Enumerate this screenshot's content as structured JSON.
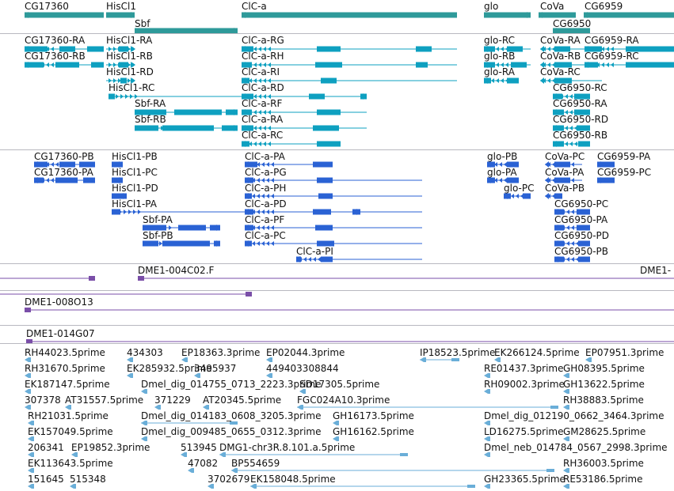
{
  "colors": {
    "gene": "#2e9a9a",
    "transcript": "#0ea0c0",
    "protein": "#2a62d4",
    "clone": "#7a4ea8",
    "est": "#6aaed8",
    "separator": "#b8b8c0"
  },
  "tracks": [
    {
      "name": "genes",
      "features": [
        {
          "label": "CG17360",
          "strand": "-"
        },
        {
          "label": "HisCl1",
          "strand": "+"
        },
        {
          "label": "Sbf",
          "strand": "+"
        },
        {
          "label": "ClC-a",
          "strand": "-"
        },
        {
          "label": "glo",
          "strand": "+"
        },
        {
          "label": "CoVa",
          "strand": "-"
        },
        {
          "label": "CG6950",
          "strand": "-"
        },
        {
          "label": "CG6959",
          "strand": "-"
        }
      ]
    },
    {
      "name": "transcripts",
      "features": [
        {
          "label": "CG17360-RA"
        },
        {
          "label": "CG17360-RB"
        },
        {
          "label": "HisCl1-RA"
        },
        {
          "label": "HisCl1-RB"
        },
        {
          "label": "HisCl1-RD"
        },
        {
          "label": "HisCl1-RC"
        },
        {
          "label": "Sbf-RA"
        },
        {
          "label": "Sbf-RB"
        },
        {
          "label": "ClC-a-RG"
        },
        {
          "label": "ClC-a-RH"
        },
        {
          "label": "ClC-a-RI"
        },
        {
          "label": "ClC-a-RD"
        },
        {
          "label": "ClC-a-RF"
        },
        {
          "label": "ClC-a-RA"
        },
        {
          "label": "ClC-a-RC"
        },
        {
          "label": "glo-RC"
        },
        {
          "label": "glo-RB"
        },
        {
          "label": "glo-RA"
        },
        {
          "label": "CoVa-RA"
        },
        {
          "label": "CoVa-RB"
        },
        {
          "label": "CoVa-RC"
        },
        {
          "label": "CG6959-RA"
        },
        {
          "label": "CG6959-RC"
        },
        {
          "label": "CG6950-RC"
        },
        {
          "label": "CG6950-RA"
        },
        {
          "label": "CG6950-RD"
        },
        {
          "label": "CG6950-RB"
        }
      ]
    },
    {
      "name": "proteins",
      "features": [
        {
          "label": "CG17360-PB"
        },
        {
          "label": "CG17360-PA"
        },
        {
          "label": "HisCl1-PB"
        },
        {
          "label": "HisCl1-PC"
        },
        {
          "label": "HisCl1-PD"
        },
        {
          "label": "HisCl1-PA"
        },
        {
          "label": "Sbf-PA"
        },
        {
          "label": "Sbf-PB"
        },
        {
          "label": "ClC-a-PA"
        },
        {
          "label": "ClC-a-PG"
        },
        {
          "label": "ClC-a-PH"
        },
        {
          "label": "ClC-a-PD"
        },
        {
          "label": "ClC-a-PF"
        },
        {
          "label": "ClC-a-PC"
        },
        {
          "label": "ClC-a-PI"
        },
        {
          "label": "glo-PB"
        },
        {
          "label": "glo-PA"
        },
        {
          "label": "glo-PC"
        },
        {
          "label": "CoVa-PC"
        },
        {
          "label": "CoVa-PA"
        },
        {
          "label": "CoVa-PB"
        },
        {
          "label": "CG6959-PA"
        },
        {
          "label": "CG6959-PC"
        },
        {
          "label": "CG6950-PC"
        },
        {
          "label": "CG6950-PA"
        },
        {
          "label": "CG6950-PD"
        },
        {
          "label": "CG6950-PB"
        }
      ]
    },
    {
      "name": "clones",
      "features": [
        {
          "label": "DME1-004C02.F"
        },
        {
          "label": "DME1-"
        },
        {
          "label": "DME1-008O13"
        },
        {
          "label": "DME1-014G07"
        }
      ]
    },
    {
      "name": "ests",
      "features": [
        {
          "label": "RH44023.5prime"
        },
        {
          "label": "434303"
        },
        {
          "label": "EP18363.3prime"
        },
        {
          "label": "EP02044.3prime"
        },
        {
          "label": "IP18523.5prime"
        },
        {
          "label": "EK266124.5prime"
        },
        {
          "label": "EP07951.3prime"
        },
        {
          "label": "RH31670.5prime"
        },
        {
          "label": "EK285932.5prime"
        },
        {
          "label": "3495937"
        },
        {
          "label": "449403308844"
        },
        {
          "label": "RE01437.3prime"
        },
        {
          "label": "GH08395.5prime"
        },
        {
          "label": "EK187147.5prime"
        },
        {
          "label": "Dmel_dig_014755_0713_2223.3prime"
        },
        {
          "label": "SD17305.5prime"
        },
        {
          "label": "RH09002.3prime"
        },
        {
          "label": "GH13622.5prime"
        },
        {
          "label": "307378"
        },
        {
          "label": "AT31557.5prime"
        },
        {
          "label": "371229"
        },
        {
          "label": "AT20345.5prime"
        },
        {
          "label": "FGC024A10.3prime"
        },
        {
          "label": "RH38883.5prime"
        },
        {
          "label": "RH21031.5prime"
        },
        {
          "label": "Dmel_dig_014183_0608_3205.3prime"
        },
        {
          "label": "GH16173.5prime"
        },
        {
          "label": "Dmel_dig_012190_0662_3464.3prime"
        },
        {
          "label": "EK157049.5prime"
        },
        {
          "label": "Dmel_dig_009485_0655_0312.3prime"
        },
        {
          "label": "GH16162.5prime"
        },
        {
          "label": "LD16275.5prime"
        },
        {
          "label": "GM28625.5prime"
        },
        {
          "label": "206341"
        },
        {
          "label": "EP19852.3prime"
        },
        {
          "label": "513945"
        },
        {
          "label": "DMG1-chr3R.8.101.a.5prime"
        },
        {
          "label": "Dmel_neb_014784_0567_2998.3prime"
        },
        {
          "label": "EK113643.5prime"
        },
        {
          "label": "47082"
        },
        {
          "label": "BP554659"
        },
        {
          "label": "RH36003.5prime"
        },
        {
          "label": "151645"
        },
        {
          "label": "515348"
        },
        {
          "label": "3702679"
        },
        {
          "label": "EK158048.5prime"
        },
        {
          "label": "GH23365.5prime"
        },
        {
          "label": "RE53186.5prime"
        }
      ]
    }
  ]
}
